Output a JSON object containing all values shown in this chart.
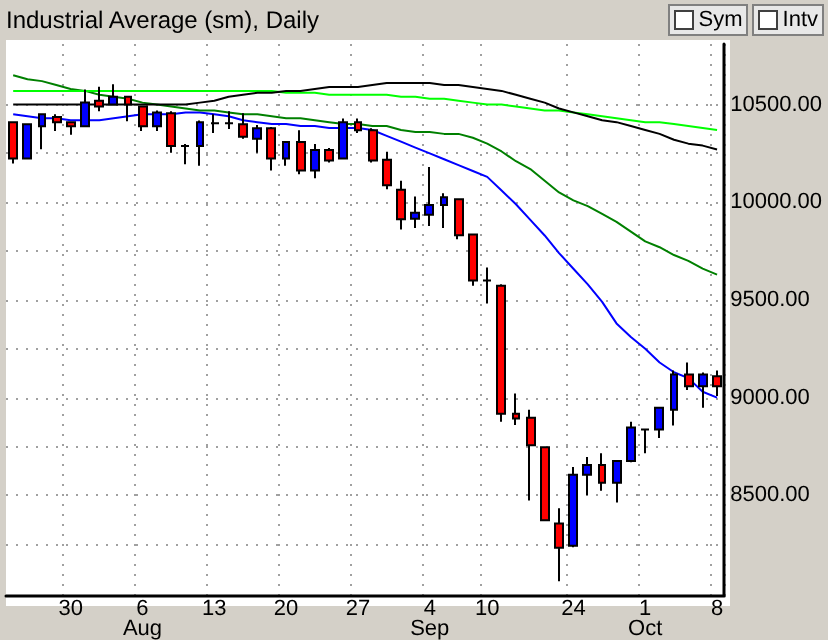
{
  "chart_data": {
    "type": "candlestick",
    "title": "Industrial Average (sm), Daily",
    "categories": [
      null,
      null,
      null,
      null,
      "30",
      null,
      null,
      null,
      null,
      "6\nAug",
      null,
      null,
      null,
      null,
      "13",
      null,
      null,
      null,
      null,
      "20",
      null,
      null,
      null,
      null,
      "27",
      null,
      null,
      null,
      null,
      "4\nSep",
      null,
      null,
      null,
      "10",
      null,
      null,
      null,
      null,
      null,
      "24",
      null,
      null,
      null,
      null,
      "1\nOct",
      null,
      null,
      null,
      null,
      "8"
    ],
    "ohlc": [
      [
        10409,
        10415,
        10198,
        10224
      ],
      [
        10224,
        10405,
        10220,
        10399
      ],
      [
        10389,
        10455,
        10271,
        10450
      ],
      [
        10436,
        10450,
        10365,
        10409
      ],
      [
        10409,
        10412,
        10345,
        10389
      ],
      [
        10389,
        10577,
        10389,
        10510
      ],
      [
        10520,
        10591,
        10466,
        10490
      ],
      [
        10500,
        10604,
        10495,
        10540
      ],
      [
        10540,
        10545,
        10415,
        10500
      ],
      [
        10490,
        10495,
        10365,
        10389
      ],
      [
        10389,
        10470,
        10365,
        10460
      ],
      [
        10456,
        10466,
        10254,
        10288
      ],
      [
        10288,
        10298,
        10194,
        10288
      ],
      [
        10288,
        10419,
        10187,
        10409
      ],
      [
        10405,
        10450,
        10355,
        10405
      ],
      [
        10405,
        10466,
        10375,
        10405
      ],
      [
        10399,
        10456,
        10325,
        10335
      ],
      [
        10325,
        10395,
        10254,
        10379
      ],
      [
        10379,
        10385,
        10163,
        10224
      ],
      [
        10224,
        10312,
        10187,
        10308
      ],
      [
        10308,
        10369,
        10143,
        10163
      ],
      [
        10163,
        10298,
        10123,
        10268
      ],
      [
        10268,
        10278,
        10204,
        10214
      ],
      [
        10224,
        10429,
        10220,
        10409
      ],
      [
        10409,
        10429,
        10355,
        10369
      ],
      [
        10369,
        10379,
        10204,
        10214
      ],
      [
        10218,
        10258,
        10067,
        10087
      ],
      [
        10064,
        10110,
        9861,
        9913
      ],
      [
        9916,
        10029,
        9868,
        9946
      ],
      [
        9936,
        10180,
        9878,
        9986
      ],
      [
        9986,
        10046,
        9868,
        10026
      ],
      [
        10016,
        10020,
        9811,
        9831
      ],
      [
        9835,
        9840,
        9573,
        9599
      ],
      [
        9599,
        9666,
        9482,
        9599
      ],
      [
        9573,
        9580,
        8877,
        8917
      ],
      [
        8917,
        9021,
        8860,
        8893
      ],
      [
        8897,
        8938,
        8474,
        8756
      ],
      [
        8746,
        8750,
        8370,
        8373
      ],
      [
        8356,
        8434,
        8061,
        8232
      ],
      [
        8242,
        8645,
        8235,
        8605
      ],
      [
        8605,
        8696,
        8500,
        8655
      ],
      [
        8655,
        8716,
        8524,
        8565
      ],
      [
        8565,
        8680,
        8464,
        8676
      ],
      [
        8676,
        8877,
        8670,
        8847
      ],
      [
        8837,
        8837,
        8716,
        8837
      ],
      [
        8837,
        8952,
        8793,
        8948
      ],
      [
        8938,
        9139,
        8857,
        9119
      ],
      [
        9119,
        9180,
        9039,
        9059
      ],
      [
        9059,
        9129,
        8948,
        9119
      ],
      [
        9109,
        9139,
        9008,
        9059
      ]
    ],
    "colors": [
      "#ff0000",
      "#0000ff",
      "#0000ff",
      "#ff0000",
      "#ff0000",
      "#0000ff",
      "#ff0000",
      "#0000ff",
      "#ff0000",
      "#ff0000",
      "#0000ff",
      "#ff0000",
      "#000000",
      "#0000ff",
      "#000000",
      "#000000",
      "#ff0000",
      "#0000ff",
      "#ff0000",
      "#0000ff",
      "#ff0000",
      "#0000ff",
      "#ff0000",
      "#0000ff",
      "#ff0000",
      "#ff0000",
      "#ff0000",
      "#ff0000",
      "#0000ff",
      "#0000ff",
      "#0000ff",
      "#ff0000",
      "#ff0000",
      "#000000",
      "#ff0000",
      "#ff0000",
      "#ff0000",
      "#ff0000",
      "#ff0000",
      "#0000ff",
      "#0000ff",
      "#ff0000",
      "#0000ff",
      "#0000ff",
      "#000000",
      "#0000ff",
      "#0000ff",
      "#ff0000",
      "#0000ff",
      "#ff0000"
    ],
    "series": [
      {
        "type": "line",
        "color": "#0000ff",
        "values": [
          10450,
          10440,
          10430,
          10430,
          10420,
          10420,
          10420,
          10430,
          10440,
          10450,
          10450,
          10450,
          10460,
          10460,
          10450,
          10440,
          10420,
          10410,
          10400,
          10400,
          10390,
          10390,
          10380,
          10380,
          10380,
          10370,
          10340,
          10310,
          10280,
          10250,
          10220,
          10190,
          10160,
          10130,
          10060,
          9990,
          9910,
          9830,
          9740,
          9660,
          9580,
          9490,
          9380,
          9310,
          9250,
          9180,
          9130,
          9100,
          9030,
          9000
        ]
      },
      {
        "type": "line",
        "color": "#008000",
        "values": [
          10650,
          10630,
          10620,
          10600,
          10580,
          10570,
          10550,
          10540,
          10530,
          10510,
          10500,
          10490,
          10480,
          10470,
          10470,
          10460,
          10450,
          10450,
          10440,
          10430,
          10430,
          10420,
          10410,
          10400,
          10400,
          10390,
          10390,
          10370,
          10360,
          10360,
          10350,
          10350,
          10330,
          10300,
          10260,
          10210,
          10170,
          10110,
          10050,
          10010,
          9980,
          9940,
          9900,
          9850,
          9800,
          9770,
          9730,
          9700,
          9660,
          9630
        ]
      },
      {
        "type": "line",
        "color": "#00ff00",
        "values": [
          10570,
          10570,
          10570,
          10570,
          10570,
          10570,
          10570,
          10570,
          10570,
          10570,
          10570,
          10570,
          10570,
          10570,
          10570,
          10570,
          10570,
          10570,
          10570,
          10560,
          10560,
          10560,
          10550,
          10550,
          10550,
          10550,
          10550,
          10540,
          10540,
          10530,
          10530,
          10520,
          10510,
          10500,
          10500,
          10490,
          10480,
          10470,
          10470,
          10460,
          10450,
          10440,
          10430,
          10420,
          10410,
          10410,
          10400,
          10390,
          10380,
          10370
        ]
      },
      {
        "type": "line",
        "color": "#000000",
        "values": [
          10500,
          10500,
          10500,
          10500,
          10500,
          10500,
          10500,
          10500,
          10500,
          10500,
          10500,
          10500,
          10500,
          10510,
          10520,
          10540,
          10550,
          10560,
          10560,
          10570,
          10570,
          10580,
          10590,
          10590,
          10590,
          10600,
          10610,
          10610,
          10610,
          10610,
          10600,
          10600,
          10590,
          10580,
          10570,
          10550,
          10530,
          10510,
          10480,
          10460,
          10440,
          10420,
          10410,
          10390,
          10370,
          10350,
          10320,
          10300,
          10290,
          10270
        ]
      }
    ],
    "ylim": [
      7990,
      10810
    ],
    "yticks": [
      {
        "value": 8250,
        "label": null
      },
      {
        "value": 8500,
        "label": "8500.00"
      },
      {
        "value": 8750,
        "label": null
      },
      {
        "value": 9000,
        "label": "9000.00"
      },
      {
        "value": 9250,
        "label": null
      },
      {
        "value": 9500,
        "label": "9500.00"
      },
      {
        "value": 9750,
        "label": null
      },
      {
        "value": 10000,
        "label": "10000.00"
      },
      {
        "value": 10250,
        "label": null
      },
      {
        "value": 10500,
        "label": "10500.00"
      }
    ],
    "grid": true,
    "marker": "none",
    "line_style": "solid",
    "annotations": [
      "Sym",
      "Intv"
    ]
  }
}
